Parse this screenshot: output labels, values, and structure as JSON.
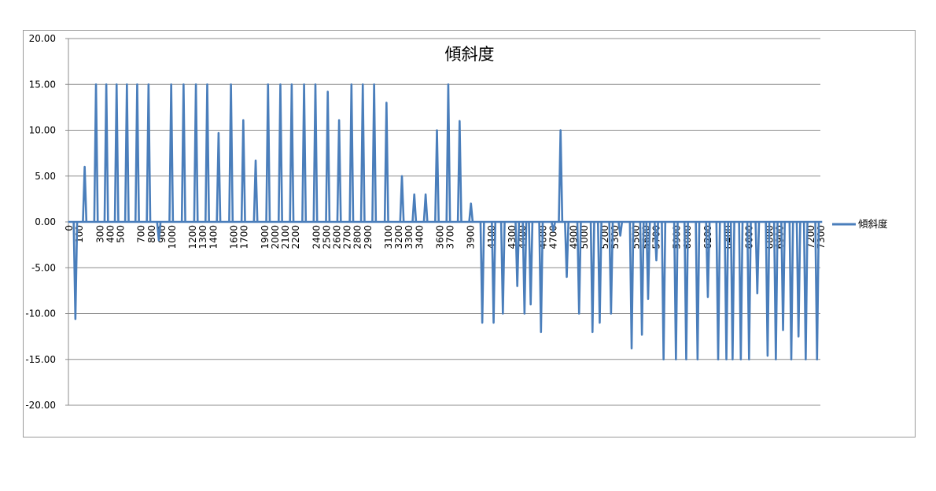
{
  "chart_data": {
    "type": "line",
    "title": "傾斜度",
    "xlabel": "",
    "ylabel": "",
    "xlim": [
      0,
      7300
    ],
    "ylim": [
      -20,
      20
    ],
    "ytick_step": 5,
    "y_tick_labels": [
      "20.00",
      "15.00",
      "10.00",
      "5.00",
      "0.00",
      "-5.00",
      "-10.00",
      "-15.00",
      "-20.00"
    ],
    "x_tick_step": 100,
    "x_tick_labels": [
      "0",
      "100",
      "300",
      "400",
      "500",
      "700",
      "800",
      "900",
      "1000",
      "1200",
      "1300",
      "1400",
      "1600",
      "1700",
      "1900",
      "2000",
      "2100",
      "2200",
      "2400",
      "2500",
      "2600",
      "2700",
      "2800",
      "2900",
      "3100",
      "3200",
      "3300",
      "3400",
      "3600",
      "3700",
      "3900",
      "4100",
      "4300",
      "4400",
      "4600",
      "4700",
      "4900",
      "5000",
      "5200",
      "5300",
      "5500",
      "5600",
      "5700",
      "5900",
      "6000",
      "6200",
      "6400",
      "6600",
      "6800",
      "6900",
      "7200",
      "7300"
    ],
    "grid": true,
    "legend": "right",
    "line_color": "#4a7ebb",
    "series": [
      {
        "name": "傾斜度",
        "points": [
          [
            60,
            -10.6
          ],
          [
            150,
            6.0
          ],
          [
            260,
            15.0
          ],
          [
            360,
            15.0
          ],
          [
            460,
            15.0
          ],
          [
            560,
            15.0
          ],
          [
            660,
            15.0
          ],
          [
            770,
            15.0
          ],
          [
            870,
            -2.0
          ],
          [
            990,
            15.0
          ],
          [
            1110,
            15.0
          ],
          [
            1230,
            15.0
          ],
          [
            1340,
            15.0
          ],
          [
            1450,
            9.7
          ],
          [
            1570,
            15.0
          ],
          [
            1690,
            11.1
          ],
          [
            1810,
            6.7
          ],
          [
            1930,
            15.0
          ],
          [
            2050,
            15.0
          ],
          [
            2160,
            15.0
          ],
          [
            2280,
            15.0
          ],
          [
            2390,
            15.0
          ],
          [
            2510,
            14.2
          ],
          [
            2620,
            11.1
          ],
          [
            2740,
            15.0
          ],
          [
            2850,
            15.0
          ],
          [
            2960,
            15.0
          ],
          [
            3080,
            13.0
          ],
          [
            3230,
            5.0
          ],
          [
            3350,
            3.0
          ],
          [
            3460,
            3.0
          ],
          [
            3570,
            10.0
          ],
          [
            3680,
            15.0
          ],
          [
            3790,
            11.0
          ],
          [
            3900,
            2.0
          ],
          [
            4010,
            -11.0
          ],
          [
            4120,
            -11.0
          ],
          [
            4210,
            -10.0
          ],
          [
            4350,
            -7.0
          ],
          [
            4420,
            -10.0
          ],
          [
            4480,
            -9.0
          ],
          [
            4580,
            -12.0
          ],
          [
            4700,
            -1.0
          ],
          [
            4770,
            10.0
          ],
          [
            4830,
            -6.0
          ],
          [
            4950,
            -10.0
          ],
          [
            5080,
            -12.0
          ],
          [
            5150,
            -11.0
          ],
          [
            5260,
            -10.0
          ],
          [
            5350,
            -1.5
          ],
          [
            5460,
            -13.8
          ],
          [
            5560,
            -12.3
          ],
          [
            5620,
            -8.4
          ],
          [
            5700,
            -4.2
          ],
          [
            5770,
            -15.0
          ],
          [
            5890,
            -15.0
          ],
          [
            5990,
            -15.0
          ],
          [
            6100,
            -15.0
          ],
          [
            6200,
            -8.2
          ],
          [
            6300,
            -15.0
          ],
          [
            6380,
            -15.0
          ],
          [
            6440,
            -15.0
          ],
          [
            6520,
            -15.0
          ],
          [
            6600,
            -15.0
          ],
          [
            6680,
            -7.8
          ],
          [
            6780,
            -14.6
          ],
          [
            6860,
            -15.0
          ],
          [
            6930,
            -11.8
          ],
          [
            7010,
            -15.0
          ],
          [
            7080,
            -12.5
          ],
          [
            7150,
            -15.0
          ],
          [
            7260,
            -15.0
          ]
        ]
      }
    ]
  }
}
